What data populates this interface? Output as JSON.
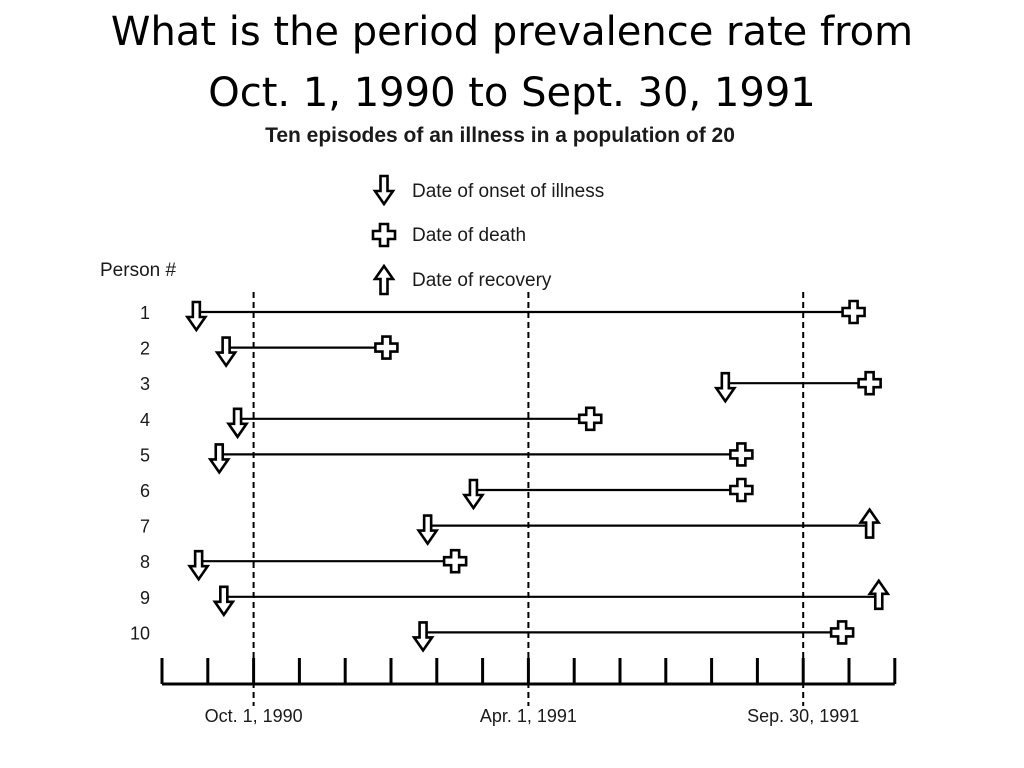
{
  "slide_title": {
    "line1": "What is the period prevalence rate from",
    "line2": "Oct. 1, 1990 to Sept. 30, 1991"
  },
  "figure": {
    "title": "Ten episodes of an illness in a population of 20",
    "legend": {
      "onset": "Date of onset of illness",
      "death": "Date of death",
      "recovery": "Date of recovery"
    },
    "person_header": "Person #",
    "time_axis": {
      "ticks_total": 17,
      "labels": [
        {
          "text": "Oct. 1, 1990",
          "tick": 2
        },
        {
          "text": "Apr. 1, 1991",
          "tick": 8
        },
        {
          "text": "Sep. 30, 1991",
          "tick": 14
        }
      ],
      "reference_lines_at_ticks": [
        2,
        8,
        14
      ]
    },
    "episodes": [
      {
        "person": "1",
        "start": 0.75,
        "end": 15.1,
        "outcome": "death"
      },
      {
        "person": "2",
        "start": 1.4,
        "end": 4.9,
        "outcome": "death"
      },
      {
        "person": "3",
        "start": 12.3,
        "end": 15.45,
        "outcome": "death"
      },
      {
        "person": "4",
        "start": 1.65,
        "end": 9.35,
        "outcome": "death"
      },
      {
        "person": "5",
        "start": 1.25,
        "end": 12.65,
        "outcome": "death"
      },
      {
        "person": "6",
        "start": 6.8,
        "end": 12.65,
        "outcome": "death"
      },
      {
        "person": "7",
        "start": 5.8,
        "end": 15.45,
        "outcome": "recovery"
      },
      {
        "person": "8",
        "start": 0.8,
        "end": 6.4,
        "outcome": "death"
      },
      {
        "person": "9",
        "start": 1.35,
        "end": 15.65,
        "outcome": "recovery"
      },
      {
        "person": "10",
        "start": 5.7,
        "end": 14.85,
        "outcome": "death"
      }
    ]
  }
}
